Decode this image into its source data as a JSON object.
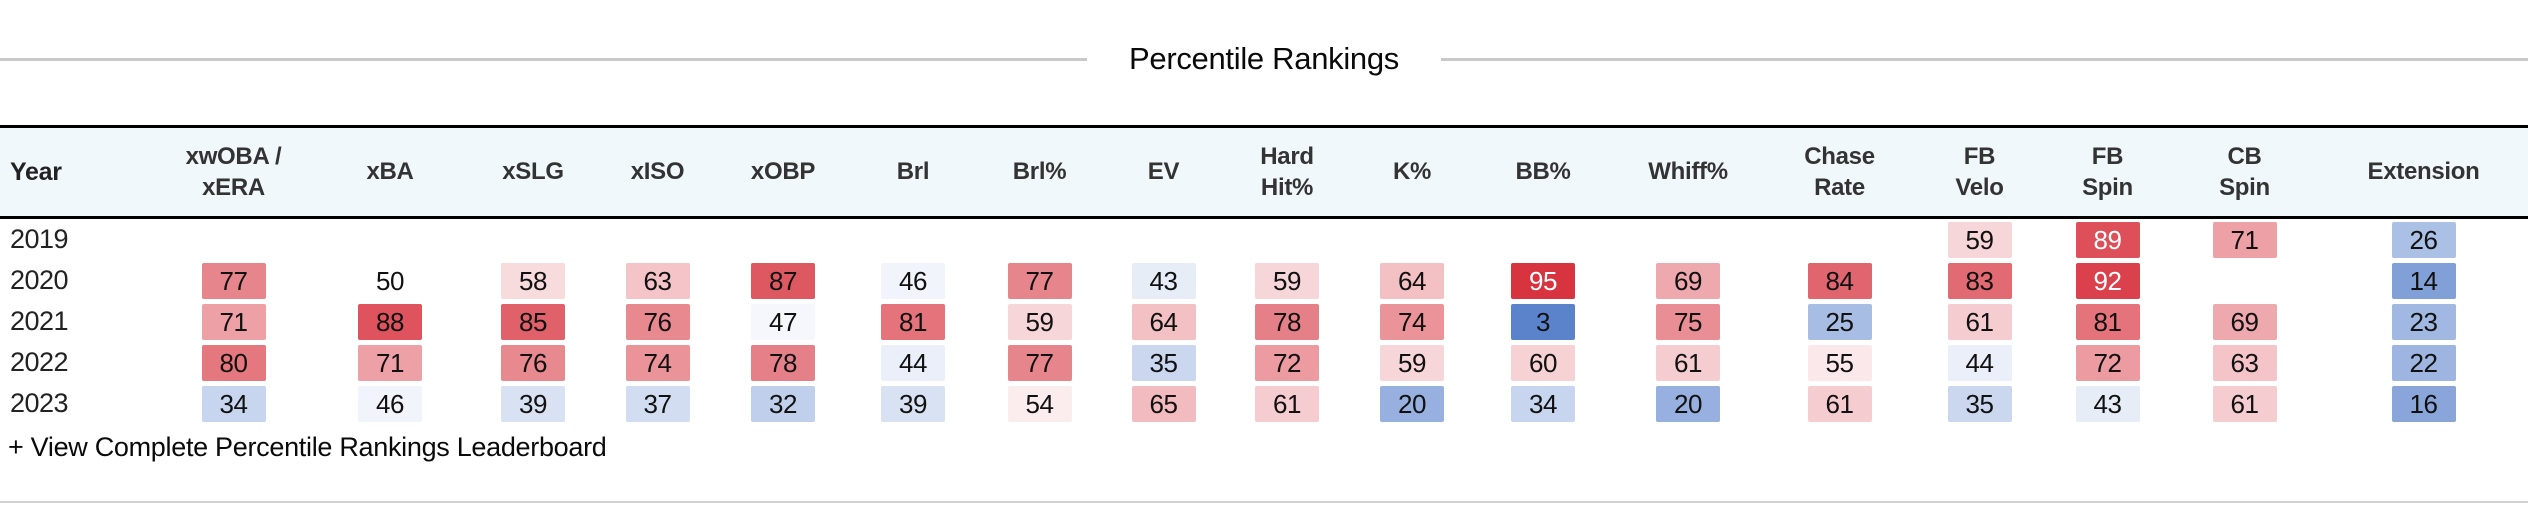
{
  "title": "Percentile Rankings",
  "footer": {
    "link_label": "+ View Complete Percentile Rankings Leaderboard"
  },
  "scale": {
    "description": "percentile heat colors: 50 = white, 100 = red, 0 = blue",
    "max_color": "#d31d2a",
    "min_color": "#517bc9",
    "neutral_color": "#ffffff",
    "midpoint": 50,
    "white_text_min": 89,
    "header_bg": "#f1f8fb",
    "border_black": "#000000",
    "rule_gray": "#c9c9c9"
  },
  "table": {
    "columns": [
      {
        "id": "year",
        "lines": [
          "Year"
        ]
      },
      {
        "id": "xwoba_xera",
        "lines": [
          "xwOBA /",
          "xERA"
        ]
      },
      {
        "id": "xba",
        "lines": [
          "xBA"
        ]
      },
      {
        "id": "xslg",
        "lines": [
          "xSLG"
        ]
      },
      {
        "id": "xiso",
        "lines": [
          "xISO"
        ]
      },
      {
        "id": "xobp",
        "lines": [
          "xOBP"
        ]
      },
      {
        "id": "brl",
        "lines": [
          "Brl"
        ]
      },
      {
        "id": "brl_pct",
        "lines": [
          "Brl%"
        ]
      },
      {
        "id": "ev",
        "lines": [
          "EV"
        ]
      },
      {
        "id": "hard_hit_pct",
        "lines": [
          "Hard",
          "Hit%"
        ]
      },
      {
        "id": "k_pct",
        "lines": [
          "K%"
        ]
      },
      {
        "id": "bb_pct",
        "lines": [
          "BB%"
        ]
      },
      {
        "id": "whiff_pct",
        "lines": [
          "Whiff%"
        ]
      },
      {
        "id": "chase_rate",
        "lines": [
          "Chase",
          "Rate"
        ]
      },
      {
        "id": "fb_velo",
        "lines": [
          "FB",
          "Velo"
        ]
      },
      {
        "id": "fb_spin",
        "lines": [
          "FB",
          "Spin"
        ]
      },
      {
        "id": "cb_spin",
        "lines": [
          "CB",
          "Spin"
        ]
      },
      {
        "id": "extension",
        "lines": [
          "Extension"
        ]
      }
    ],
    "rows": [
      {
        "year": "2019",
        "values": [
          null,
          null,
          null,
          null,
          null,
          null,
          null,
          null,
          null,
          null,
          null,
          null,
          null,
          59,
          89,
          71,
          26
        ]
      },
      {
        "year": "2020",
        "values": [
          77,
          50,
          58,
          63,
          87,
          46,
          77,
          43,
          59,
          64,
          95,
          69,
          84,
          83,
          92,
          null,
          14
        ]
      },
      {
        "year": "2021",
        "values": [
          71,
          88,
          85,
          76,
          47,
          81,
          59,
          64,
          78,
          74,
          3,
          75,
          25,
          61,
          81,
          69,
          23
        ]
      },
      {
        "year": "2022",
        "values": [
          80,
          71,
          76,
          74,
          78,
          44,
          77,
          35,
          72,
          59,
          60,
          61,
          55,
          44,
          72,
          63,
          22
        ]
      },
      {
        "year": "2023",
        "values": [
          34,
          46,
          39,
          37,
          32,
          39,
          54,
          65,
          61,
          20,
          34,
          20,
          61,
          35,
          43,
          61,
          16
        ]
      }
    ]
  }
}
